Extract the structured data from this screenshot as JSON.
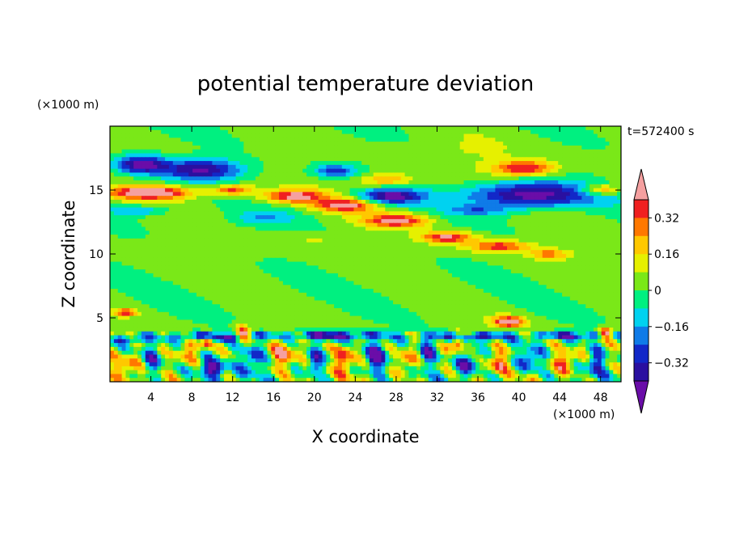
{
  "chart_data": {
    "type": "heatmap",
    "title": "potential temperature deviation",
    "xlabel": "X coordinate",
    "ylabel": "Z coordinate",
    "x_unit": "(×1000 m)",
    "y_unit": "(×1000 m)",
    "time_label": "t=572400 s",
    "xlim": [
      0,
      50
    ],
    "ylim": [
      0,
      20
    ],
    "x_ticks": [
      "4",
      "8",
      "12",
      "16",
      "20",
      "24",
      "28",
      "32",
      "36",
      "40",
      "44",
      "48"
    ],
    "x_tick_values": [
      4,
      8,
      12,
      16,
      20,
      24,
      28,
      32,
      36,
      40,
      44,
      48
    ],
    "y_ticks": [
      "5",
      "10",
      "15"
    ],
    "y_tick_values": [
      5,
      10,
      15
    ],
    "colorbar": {
      "min": -0.48,
      "max": 0.48,
      "step": 0.08,
      "labels": [
        "0.32",
        "0.16",
        "0",
        "−0.16",
        "−0.32"
      ],
      "label_values": [
        0.32,
        0.16,
        0,
        -0.16,
        -0.32
      ],
      "colors": [
        "#6a0da8",
        "#2a10a0",
        "#1228c8",
        "#0f7be8",
        "#00d2f0",
        "#00f080",
        "#7ae818",
        "#e6f000",
        "#ffc800",
        "#ff7800",
        "#f02020",
        "#f5a0a0"
      ]
    },
    "background_value": 0.02,
    "features": [
      {
        "x": 3,
        "z": 17,
        "rx": 2.5,
        "rz": 0.7,
        "v": -0.45
      },
      {
        "x": 9,
        "z": 16.6,
        "rx": 4,
        "rz": 0.8,
        "v": -0.42
      },
      {
        "x": 4,
        "z": 14.8,
        "rx": 4,
        "rz": 0.5,
        "v": 0.5
      },
      {
        "x": 12,
        "z": 15,
        "rx": 2,
        "rz": 0.4,
        "v": 0.35
      },
      {
        "x": 18,
        "z": 14.5,
        "rx": 3,
        "rz": 0.5,
        "v": 0.42
      },
      {
        "x": 23,
        "z": 13.8,
        "rx": 3,
        "rz": 0.5,
        "v": 0.4
      },
      {
        "x": 28,
        "z": 12.6,
        "rx": 3,
        "rz": 0.5,
        "v": 0.42
      },
      {
        "x": 33,
        "z": 11.3,
        "rx": 2.5,
        "rz": 0.45,
        "v": 0.4
      },
      {
        "x": 38,
        "z": 10.6,
        "rx": 3,
        "rz": 0.45,
        "v": 0.35
      },
      {
        "x": 43,
        "z": 10,
        "rx": 2,
        "rz": 0.4,
        "v": 0.25
      },
      {
        "x": 27.5,
        "z": 14.5,
        "rx": 3,
        "rz": 0.6,
        "v": -0.44
      },
      {
        "x": 41,
        "z": 14.6,
        "rx": 6,
        "rz": 1,
        "v": -0.5
      },
      {
        "x": 22,
        "z": 16.5,
        "rx": 2,
        "rz": 0.5,
        "v": -0.3
      },
      {
        "x": 40.5,
        "z": 16.7,
        "rx": 3,
        "rz": 0.6,
        "v": 0.4
      },
      {
        "x": 27,
        "z": 15.8,
        "rx": 2.5,
        "rz": 0.5,
        "v": 0.25
      },
      {
        "x": 48,
        "z": 15,
        "rx": 2,
        "rz": 0.4,
        "v": 0.3
      },
      {
        "x": 3,
        "z": 13.4,
        "rx": 3,
        "rz": 0.4,
        "v": -0.2
      },
      {
        "x": 15,
        "z": 12.8,
        "rx": 3,
        "rz": 0.6,
        "v": -0.15
      },
      {
        "x": 36,
        "z": 13.4,
        "rx": 3,
        "rz": 0.4,
        "v": -0.18
      },
      {
        "x": 20,
        "z": 11,
        "rx": 3,
        "rz": 0.5,
        "v": 0.08
      },
      {
        "x": 10,
        "z": 10.5,
        "rx": 4,
        "rz": 0.8,
        "v": 0.06
      },
      {
        "x": 35,
        "z": 18,
        "rx": 6,
        "rz": 1.2,
        "v": 0.06
      },
      {
        "x": 10,
        "z": 3.5,
        "rx": 4,
        "rz": 0.35,
        "v": -0.4
      },
      {
        "x": 22,
        "z": 3.6,
        "rx": 5,
        "rz": 0.35,
        "v": -0.42
      },
      {
        "x": 35,
        "z": 3.5,
        "rx": 4,
        "rz": 0.35,
        "v": -0.4
      },
      {
        "x": 45,
        "z": 3.6,
        "rx": 4,
        "rz": 0.3,
        "v": -0.35
      },
      {
        "x": 2,
        "z": 3.3,
        "rx": 2,
        "rz": 0.3,
        "v": -0.3
      },
      {
        "x": 9.5,
        "z": 3.2,
        "rx": 0.6,
        "rz": 0.5,
        "v": 0.5
      },
      {
        "x": 13,
        "z": 3.8,
        "rx": 0.7,
        "rz": 0.6,
        "v": 0.45
      },
      {
        "x": 34,
        "z": 3.2,
        "rx": 0.6,
        "rz": 0.7,
        "v": 0.5
      },
      {
        "x": 39,
        "z": 4.7,
        "rx": 1.5,
        "rz": 0.4,
        "v": 0.5
      },
      {
        "x": 48.5,
        "z": 3.8,
        "rx": 0.6,
        "rz": 0.4,
        "v": 0.5
      },
      {
        "x": 1.5,
        "z": 5.4,
        "rx": 1,
        "rz": 0.25,
        "v": 0.4
      },
      {
        "x": 4,
        "z": 1.5,
        "rx": 0.8,
        "rz": 1,
        "v": -0.3
      },
      {
        "x": 7.5,
        "z": 2.3,
        "rx": 1,
        "rz": 0.9,
        "v": 0.3
      },
      {
        "x": 10,
        "z": 1,
        "rx": 1.2,
        "rz": 0.6,
        "v": -0.45
      },
      {
        "x": 14,
        "z": 1.8,
        "rx": 1,
        "rz": 1,
        "v": -0.35
      },
      {
        "x": 17,
        "z": 2.2,
        "rx": 1.2,
        "rz": 1,
        "v": 0.3
      },
      {
        "x": 20,
        "z": 1.5,
        "rx": 0.8,
        "rz": 1,
        "v": -0.4
      },
      {
        "x": 23,
        "z": 1.8,
        "rx": 1,
        "rz": 1.2,
        "v": 0.35
      },
      {
        "x": 26,
        "z": 2,
        "rx": 1,
        "rz": 1,
        "v": -0.45
      },
      {
        "x": 29,
        "z": 1.6,
        "rx": 1,
        "rz": 1,
        "v": 0.3
      },
      {
        "x": 31,
        "z": 2.2,
        "rx": 0.8,
        "rz": 1,
        "v": -0.35
      },
      {
        "x": 35,
        "z": 1.4,
        "rx": 1.2,
        "rz": 0.8,
        "v": -0.4
      },
      {
        "x": 38,
        "z": 1.6,
        "rx": 1,
        "rz": 0.9,
        "v": 0.25
      },
      {
        "x": 41,
        "z": 1.7,
        "rx": 1,
        "rz": 0.9,
        "v": -0.35
      },
      {
        "x": 44.5,
        "z": 1.6,
        "rx": 1.2,
        "rz": 0.9,
        "v": 0.35
      },
      {
        "x": 47.5,
        "z": 1.5,
        "rx": 0.8,
        "rz": 1,
        "v": -0.3
      },
      {
        "x": 1.5,
        "z": 1.2,
        "rx": 1,
        "rz": 0.8,
        "v": 0.25
      }
    ]
  }
}
